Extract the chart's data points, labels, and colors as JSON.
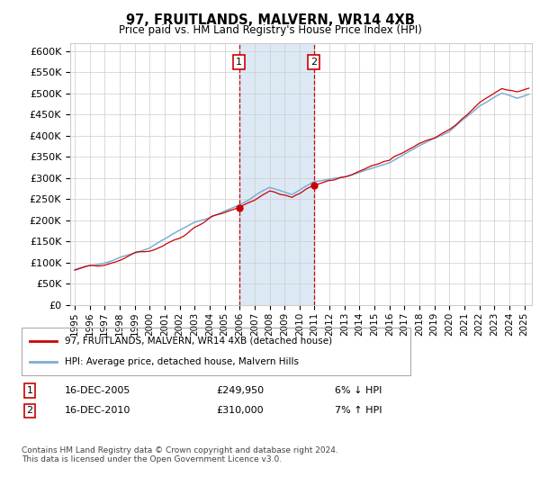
{
  "title": "97, FRUITLANDS, MALVERN, WR14 4XB",
  "subtitle": "Price paid vs. HM Land Registry's House Price Index (HPI)",
  "ylim": [
    0,
    620000
  ],
  "ytick_step": 50000,
  "xlim_start": 1994.7,
  "xlim_end": 2025.5,
  "sale1_date": 2005.96,
  "sale1_price": 249950,
  "sale1_label": "1",
  "sale1_text": "16-DEC-2005",
  "sale1_price_text": "£249,950",
  "sale1_hpi_text": "6% ↓ HPI",
  "sale2_date": 2010.96,
  "sale2_price": 310000,
  "sale2_label": "2",
  "sale2_text": "16-DEC-2010",
  "sale2_price_text": "£310,000",
  "sale2_hpi_text": "7% ↑ HPI",
  "hpi_color": "#7bafd4",
  "price_color": "#cc0000",
  "shade_color": "#dce9f5",
  "grid_color": "#cccccc",
  "legend_line1": "97, FRUITLANDS, MALVERN, WR14 4XB (detached house)",
  "legend_line2": "HPI: Average price, detached house, Malvern Hills",
  "footer": "Contains HM Land Registry data © Crown copyright and database right 2024.\nThis data is licensed under the Open Government Licence v3.0."
}
